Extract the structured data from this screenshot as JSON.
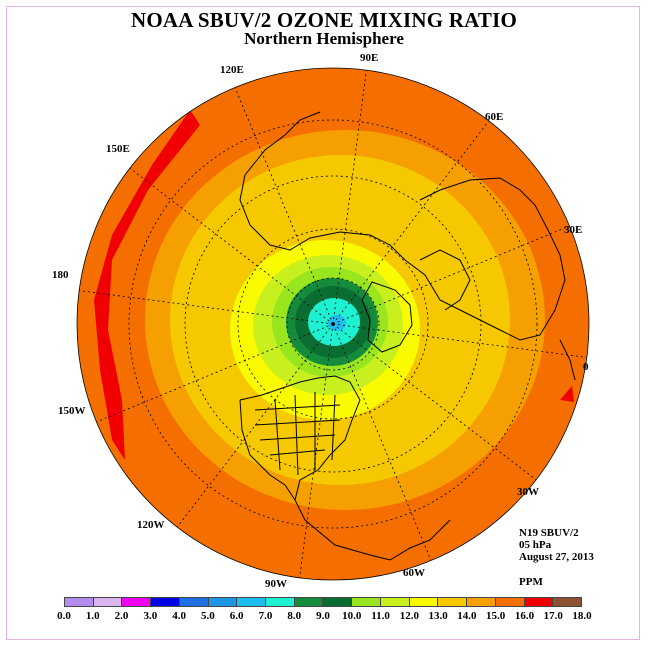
{
  "title": "NOAA SBUV/2 OZONE MIXING RATIO",
  "subtitle": "Northern Hemisphere",
  "info": {
    "instrument": "N19 SBUV/2",
    "level": "05 hPa",
    "date": "August 27, 2013",
    "units": "PPM"
  },
  "longitude_labels": [
    "90E",
    "60E",
    "30E",
    "0",
    "30W",
    "60W",
    "90W",
    "120W",
    "150W",
    "180",
    "150E",
    "120E"
  ],
  "colorbar": {
    "colors": [
      "#b48cf0",
      "#dcb4f0",
      "#f000f0",
      "#0000e6",
      "#1e6ee6",
      "#1e96e6",
      "#1ebef0",
      "#1ef0d2",
      "#148c3c",
      "#0a6e32",
      "#9ae61e",
      "#c8f01e",
      "#fafa00",
      "#f5c800",
      "#f5a000",
      "#f56e00",
      "#f00000",
      "#8c5032"
    ],
    "tick_labels": [
      "0.0",
      "1.0",
      "2.0",
      "3.0",
      "4.0",
      "5.0",
      "6.0",
      "7.0",
      "8.0",
      "9.0",
      "10.0",
      "11.0",
      "12.0",
      "13.0",
      "14.0",
      "15.0",
      "16.0",
      "17.0",
      "18.0"
    ]
  },
  "chart_data": {
    "type": "heatmap",
    "title": "NOAA SBUV/2 OZONE MIXING RATIO",
    "subtitle": "Northern Hemisphere",
    "units": "PPM",
    "projection": "polar stereographic, north pole",
    "levels": [
      0,
      1,
      2,
      3,
      4,
      5,
      6,
      7,
      8,
      9,
      10,
      11,
      12,
      13,
      14,
      15,
      16,
      17,
      18
    ],
    "approx_fields": [
      {
        "region": "pole",
        "range": [
          7,
          9
        ]
      },
      {
        "region": "polar ring",
        "range": [
          9,
          10
        ]
      },
      {
        "region": "high latitudes",
        "range": [
          10,
          13
        ]
      },
      {
        "region": "mid latitudes",
        "range": [
          13,
          15
        ]
      },
      {
        "region": "subtropics",
        "range": [
          15,
          16
        ]
      },
      {
        "region": "tropics near 180",
        "range": [
          16,
          17
        ]
      }
    ]
  }
}
